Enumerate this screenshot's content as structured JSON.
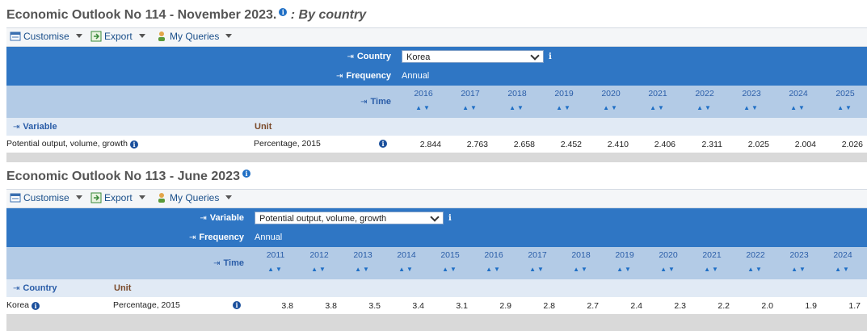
{
  "panel1": {
    "title_main": "Economic Outlook No 114 - November 2023.",
    "title_sub": ": By country",
    "toolbar": {
      "customise": "Customise",
      "export": "Export",
      "my_queries": "My Queries"
    },
    "country_label": "Country",
    "country_value": "Korea",
    "frequency_label": "Frequency",
    "frequency_value": "Annual",
    "time_label": "Time",
    "years": [
      "2016",
      "2017",
      "2018",
      "2019",
      "2020",
      "2021",
      "2022",
      "2023",
      "2024",
      "2025"
    ],
    "row_header_label": "Variable",
    "unit_header_label": "Unit",
    "row_label": "Potential output, volume, growth",
    "unit_value": "Percentage, 2015",
    "values": [
      "2.844",
      "2.763",
      "2.658",
      "2.452",
      "2.410",
      "2.406",
      "2.311",
      "2.025",
      "2.004",
      "2.026"
    ]
  },
  "panel2": {
    "title_main": "Economic Outlook No 113 - June 2023",
    "toolbar": {
      "customise": "Customise",
      "export": "Export",
      "my_queries": "My Queries"
    },
    "variable_label": "Variable",
    "variable_value": "Potential output, volume, growth",
    "frequency_label": "Frequency",
    "frequency_value": "Annual",
    "time_label": "Time",
    "years": [
      "2011",
      "2012",
      "2013",
      "2014",
      "2015",
      "2016",
      "2017",
      "2018",
      "2019",
      "2020",
      "2021",
      "2022",
      "2023",
      "2024"
    ],
    "row_header_label": "Country",
    "unit_header_label": "Unit",
    "row_label": "Korea",
    "unit_value": "Percentage, 2015",
    "values": [
      "3.8",
      "3.8",
      "3.5",
      "3.4",
      "3.1",
      "2.9",
      "2.8",
      "2.7",
      "2.4",
      "2.3",
      "2.2",
      "2.0",
      "1.9",
      "1.7"
    ]
  },
  "colors": {
    "header_blue": "#2f76c4",
    "header_light": "#b3cbe6",
    "header_pale": "#e1eaf5",
    "link_blue": "#1a4f8a"
  },
  "icons": {
    "info": "i",
    "arrow": "⇥",
    "sort": "▲▼"
  }
}
